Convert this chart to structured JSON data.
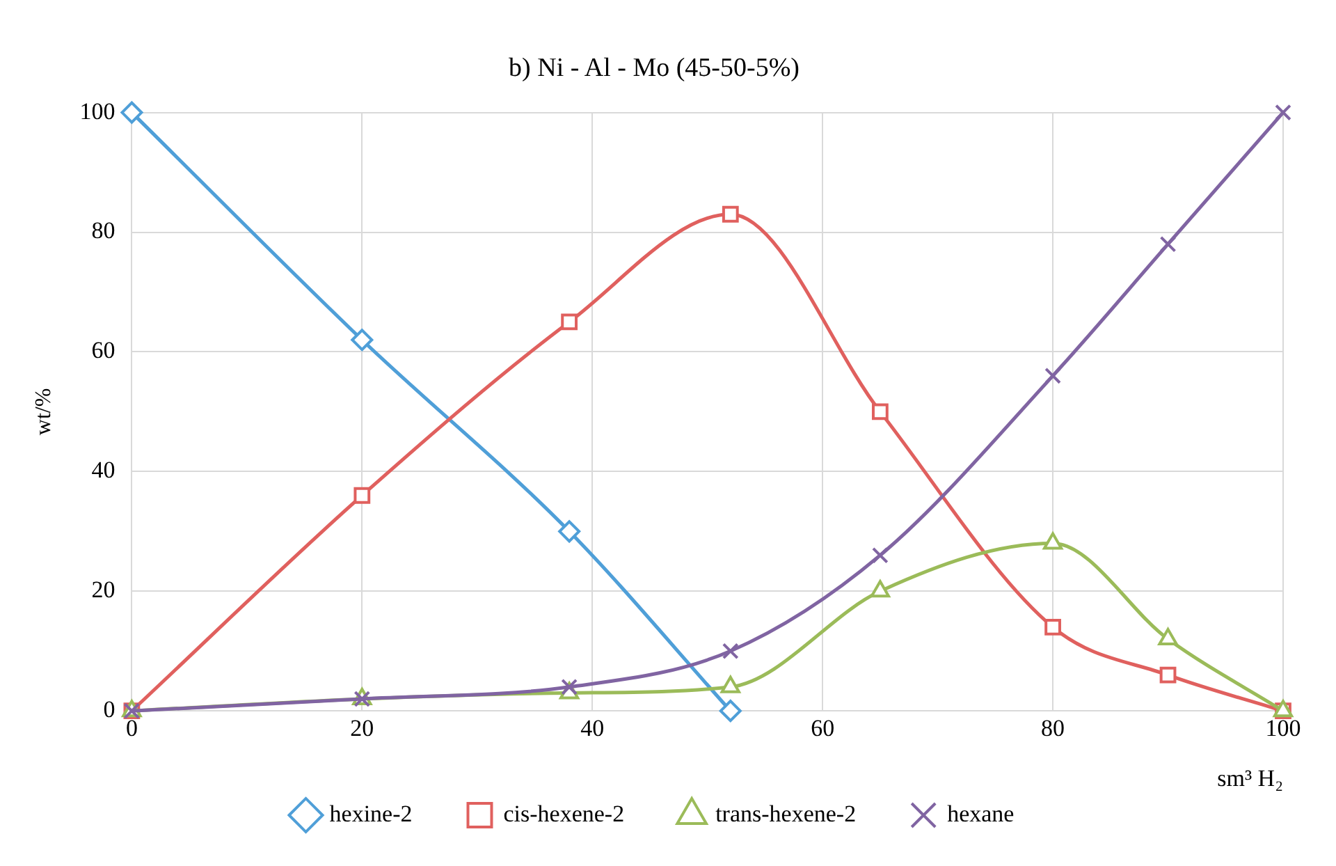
{
  "chart_data": {
    "type": "line",
    "title": "b) Ni - Al - Mo (45-50-5%)",
    "xlabel": "sm³ H₂",
    "ylabel": "wt/%",
    "xlim": [
      0,
      100
    ],
    "xticks": [
      0,
      20,
      40,
      60,
      80,
      100
    ],
    "ylim": [
      0,
      100
    ],
    "yticks": [
      0,
      20,
      40,
      60,
      80,
      100
    ],
    "grid": true,
    "legend": "bottom",
    "series": [
      {
        "name": "hexine-2",
        "color": "#4f9fd8",
        "marker": "diamond",
        "x": [
          0,
          20,
          38,
          52
        ],
        "values": [
          100,
          62,
          30,
          0
        ]
      },
      {
        "name": "cis-hexene-2",
        "color": "#e0605e",
        "marker": "square",
        "x": [
          0,
          20,
          38,
          52,
          65,
          80,
          90,
          100
        ],
        "values": [
          0,
          36,
          65,
          83,
          50,
          14,
          6,
          0
        ]
      },
      {
        "name": "trans-hexene-2",
        "color": "#9bbb59",
        "marker": "triangle",
        "x": [
          0,
          20,
          38,
          52,
          65,
          80,
          90,
          100
        ],
        "values": [
          0,
          2,
          3,
          4,
          20,
          28,
          12,
          0
        ]
      },
      {
        "name": "hexane",
        "color": "#8064a2",
        "marker": "cross",
        "x": [
          0,
          20,
          38,
          52,
          65,
          80,
          90,
          100
        ],
        "values": [
          0,
          2,
          4,
          10,
          26,
          56,
          78,
          100
        ]
      }
    ]
  }
}
